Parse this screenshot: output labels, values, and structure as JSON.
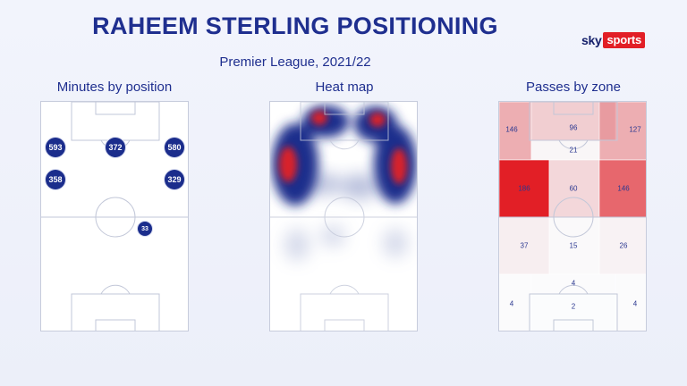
{
  "title": "RAHEEM STERLING POSITIONING",
  "subtitle": "Premier League, 2021/22",
  "logo": {
    "sky": "sky",
    "sports": "sports"
  },
  "panels": {
    "minutes": {
      "title": "Minutes by position"
    },
    "heat": {
      "title": "Heat map"
    },
    "passes": {
      "title": "Passes by zone"
    }
  },
  "minutes_by_position": [
    {
      "value": "593"
    },
    {
      "value": "372"
    },
    {
      "value": "580"
    },
    {
      "value": "358"
    },
    {
      "value": "329"
    },
    {
      "value": "33"
    }
  ],
  "passes_by_zone": [
    {
      "value": "146",
      "intensity": 0.55
    },
    {
      "value": "96",
      "intensity": 0.4
    },
    {
      "value": "127",
      "intensity": 0.55
    },
    {
      "value": "21",
      "intensity": 0.1
    },
    {
      "value": "186",
      "intensity": 1.0
    },
    {
      "value": "60",
      "intensity": 0.35
    },
    {
      "value": "146",
      "intensity": 0.8
    },
    {
      "value": "37",
      "intensity": 0.18
    },
    {
      "value": "15",
      "intensity": 0.06
    },
    {
      "value": "26",
      "intensity": 0.14
    },
    {
      "value": "4",
      "intensity": 0.02
    },
    {
      "value": "4",
      "intensity": 0.02
    },
    {
      "value": "2",
      "intensity": 0.01
    },
    {
      "value": "4",
      "intensity": 0.02
    }
  ],
  "colors": {
    "navy": "#1b2d8c",
    "red": "#e21f26",
    "line": "#c7ccdc"
  }
}
